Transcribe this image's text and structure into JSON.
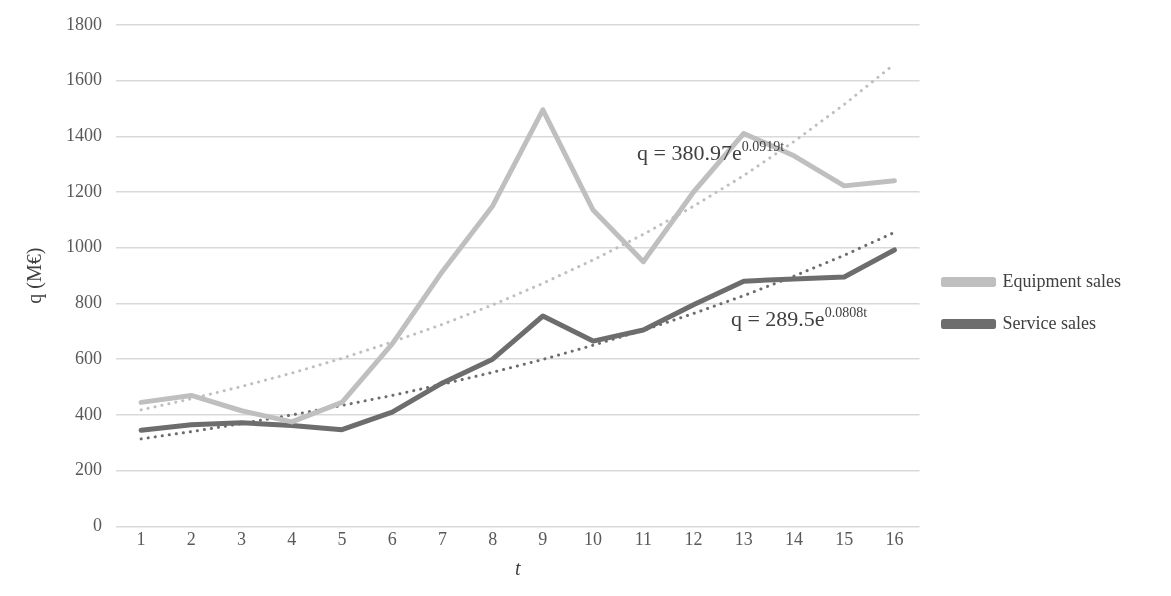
{
  "chart_data": {
    "type": "line",
    "xlabel": "t",
    "ylabel": "q (M€)",
    "x": [
      1,
      2,
      3,
      4,
      5,
      6,
      7,
      8,
      9,
      10,
      11,
      12,
      13,
      14,
      15,
      16
    ],
    "xlim": [
      0.5,
      16.5
    ],
    "xticks": [
      1,
      2,
      3,
      4,
      5,
      6,
      7,
      8,
      9,
      10,
      11,
      12,
      13,
      14,
      15,
      16
    ],
    "ylim": [
      0,
      1800
    ],
    "yticks": [
      0,
      200,
      400,
      600,
      800,
      1000,
      1200,
      1400,
      1600,
      1800
    ],
    "grid": "y",
    "legend": "right",
    "marker": "none",
    "series": [
      {
        "name": "Equipment sales",
        "color": "#bfbfbf",
        "values": [
          445,
          470,
          415,
          375,
          445,
          655,
          915,
          1150,
          1495,
          1135,
          950,
          1200,
          1410,
          1330,
          1222,
          1240
        ]
      },
      {
        "name": "Service sales",
        "color": "#6d6d6d",
        "values": [
          345,
          365,
          372,
          362,
          347,
          410,
          515,
          600,
          755,
          665,
          705,
          795,
          880,
          888,
          895,
          992
        ]
      },
      {
        "type": "line",
        "color": "#bfbfbf",
        "line_style": "dotted",
        "x": [
          1,
          2,
          3,
          4,
          5,
          6,
          7,
          8,
          9,
          10,
          11,
          12,
          13,
          14,
          15,
          16
        ],
        "values": [
          418,
          458,
          502,
          550,
          603,
          662,
          725,
          795,
          872,
          956,
          1048,
          1149,
          1259,
          1381,
          1514,
          1659
        ]
      },
      {
        "type": "line",
        "color": "#6d6d6d",
        "line_style": "dotted",
        "x": [
          1,
          2,
          3,
          4,
          5,
          6,
          7,
          8,
          9,
          10,
          11,
          12,
          13,
          14,
          15,
          16
        ],
        "values": [
          314,
          340,
          369,
          400,
          434,
          470,
          510,
          553,
          599,
          650,
          704,
          764,
          828,
          898,
          973,
          1055
        ]
      }
    ],
    "annotations": [
      "q = 380.97e$^{0.0919t}$",
      "q = 289.5e$^{0.0808t}$"
    ]
  }
}
